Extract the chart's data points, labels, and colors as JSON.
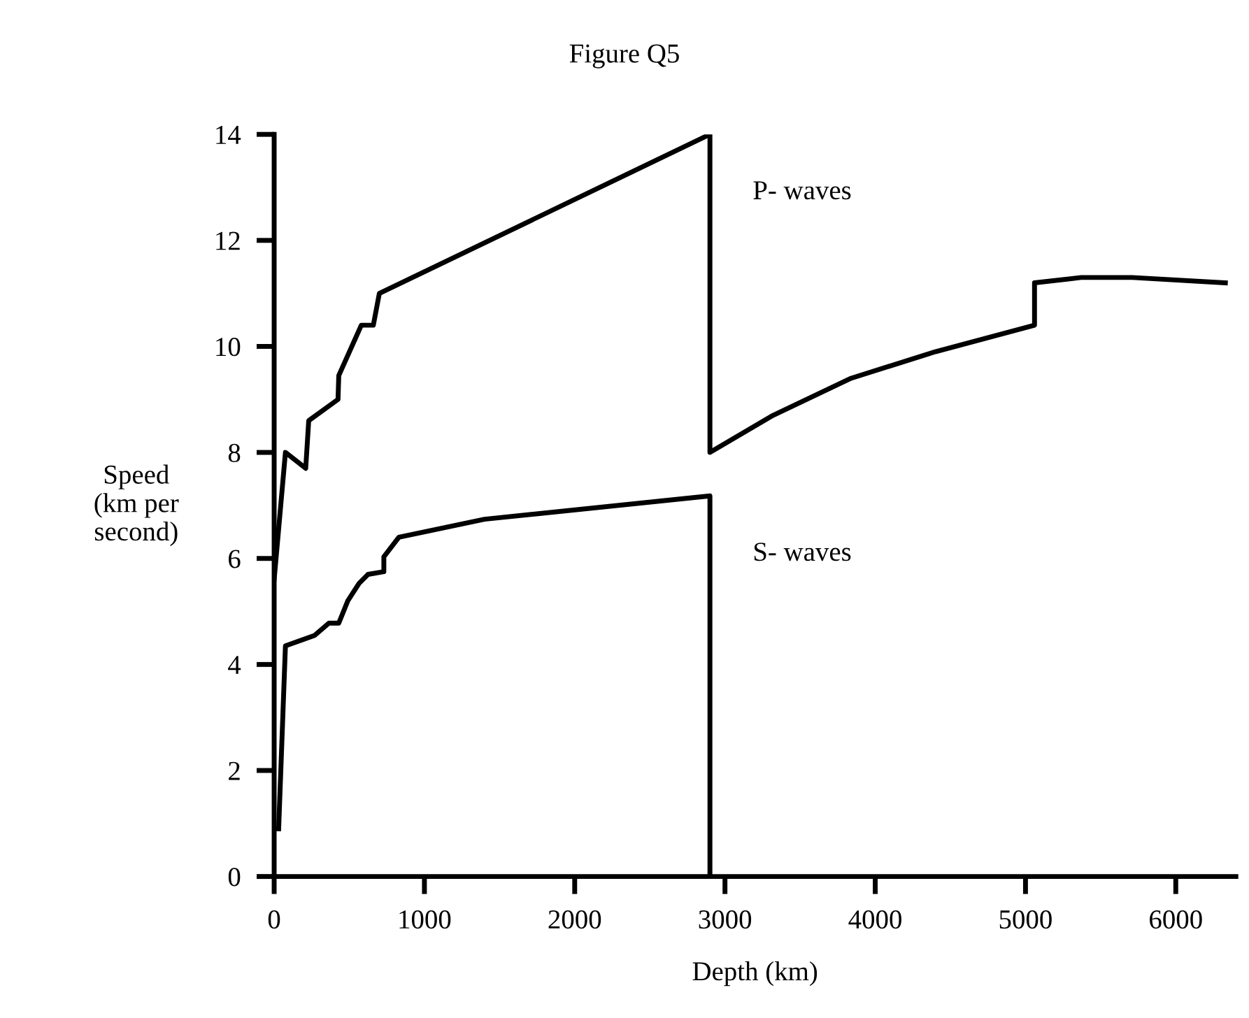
{
  "chart_data": {
    "type": "line",
    "title": "Figure Q5",
    "xlabel": "Depth (km)",
    "ylabel": "Speed\n(km per\nsecond)",
    "series": [
      {
        "name": "P- waves",
        "color": "#000000",
        "x": [
          0,
          75,
          210,
          230,
          425,
          430,
          580,
          660,
          700,
          2900,
          2900,
          3320,
          3840,
          4400,
          5060,
          5060,
          5370,
          5710,
          6330
        ],
        "values": [
          5.6,
          8.0,
          7.7,
          8.6,
          9.0,
          9.45,
          10.4,
          10.4,
          11.0,
          14.0,
          8.0,
          8.7,
          9.4,
          9.9,
          10.4,
          11.2,
          11.3,
          11.3,
          11.2
        ]
      },
      {
        "name": "S- waves",
        "color": "#000000",
        "x": [
          30,
          75,
          270,
          365,
          430,
          490,
          565,
          625,
          730,
          730,
          830,
          1400,
          2900,
          2900
        ],
        "values": [
          0.9,
          4.35,
          4.55,
          4.78,
          4.78,
          5.2,
          5.53,
          5.7,
          5.75,
          6.03,
          6.4,
          6.74,
          7.18,
          0
        ]
      }
    ],
    "xlim": [
      0,
      6400
    ],
    "ylim": [
      0,
      14
    ],
    "xticks": [
      0,
      1000,
      2000,
      3000,
      4000,
      5000,
      6000
    ],
    "yticks": [
      0,
      2,
      4,
      6,
      8,
      10,
      12,
      14
    ],
    "grid": false,
    "legend": false,
    "marker": "none",
    "line_style": "solid"
  }
}
